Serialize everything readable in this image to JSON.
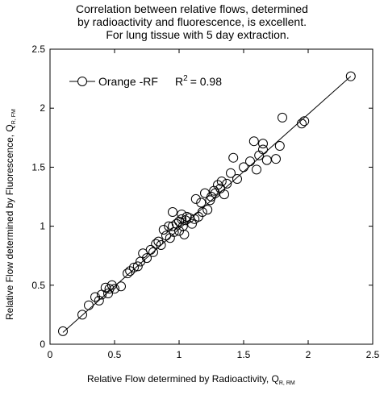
{
  "chart_data": {
    "type": "scatter",
    "title_lines": [
      "Correlation between relative flows, determined",
      "by radioactivity and fluorescence, is excellent.",
      "For lung tissue with 5 day extraction."
    ],
    "xlabel": {
      "main": "Relative Flow determined by Radioactivity, Q",
      "sub": "R, RM"
    },
    "ylabel": {
      "main": "Relative Flow determined by Fluorescence, Q",
      "sub": "R, FM"
    },
    "xlim": [
      0,
      2.5
    ],
    "ylim": [
      0,
      2.5
    ],
    "xticks": [
      "0",
      "0.5",
      "1",
      "1.5",
      "2",
      "2.5"
    ],
    "yticks": [
      "0",
      "0.5",
      "1",
      "1.5",
      "2",
      "2.5"
    ],
    "grid": false,
    "legend": {
      "position": "top-left",
      "series_name": "Orange -RF",
      "r2_label": "R",
      "r2_exp": "2",
      "r2_value": "= 0.98"
    },
    "regression_line": {
      "x": [
        0.1,
        2.33
      ],
      "y": [
        0.1,
        2.27
      ]
    },
    "points": [
      [
        0.1,
        0.11
      ],
      [
        0.25,
        0.25
      ],
      [
        0.3,
        0.33
      ],
      [
        0.35,
        0.4
      ],
      [
        0.38,
        0.37
      ],
      [
        0.4,
        0.42
      ],
      [
        0.43,
        0.48
      ],
      [
        0.45,
        0.43
      ],
      [
        0.46,
        0.47
      ],
      [
        0.48,
        0.5
      ],
      [
        0.5,
        0.47
      ],
      [
        0.55,
        0.49
      ],
      [
        0.6,
        0.6
      ],
      [
        0.62,
        0.62
      ],
      [
        0.65,
        0.65
      ],
      [
        0.68,
        0.66
      ],
      [
        0.7,
        0.7
      ],
      [
        0.72,
        0.77
      ],
      [
        0.75,
        0.73
      ],
      [
        0.78,
        0.8
      ],
      [
        0.8,
        0.78
      ],
      [
        0.82,
        0.85
      ],
      [
        0.84,
        0.87
      ],
      [
        0.86,
        0.84
      ],
      [
        0.88,
        0.97
      ],
      [
        0.9,
        0.92
      ],
      [
        0.92,
        1.0
      ],
      [
        0.93,
        0.9
      ],
      [
        0.95,
        1.0
      ],
      [
        0.95,
        1.12
      ],
      [
        0.96,
        0.95
      ],
      [
        0.98,
        1.02
      ],
      [
        1.0,
        1.04
      ],
      [
        1.0,
        0.96
      ],
      [
        1.02,
        1.1
      ],
      [
        1.02,
        1.06
      ],
      [
        1.03,
        1.0
      ],
      [
        1.04,
        0.93
      ],
      [
        1.05,
        1.05
      ],
      [
        1.06,
        1.08
      ],
      [
        1.08,
        1.07
      ],
      [
        1.1,
        1.02
      ],
      [
        1.12,
        1.06
      ],
      [
        1.13,
        1.23
      ],
      [
        1.15,
        1.08
      ],
      [
        1.17,
        1.2
      ],
      [
        1.18,
        1.12
      ],
      [
        1.2,
        1.28
      ],
      [
        1.22,
        1.14
      ],
      [
        1.24,
        1.22
      ],
      [
        1.25,
        1.25
      ],
      [
        1.27,
        1.3
      ],
      [
        1.28,
        1.28
      ],
      [
        1.3,
        1.35
      ],
      [
        1.32,
        1.32
      ],
      [
        1.33,
        1.38
      ],
      [
        1.35,
        1.27
      ],
      [
        1.37,
        1.36
      ],
      [
        1.4,
        1.45
      ],
      [
        1.42,
        1.58
      ],
      [
        1.45,
        1.4
      ],
      [
        1.5,
        1.5
      ],
      [
        1.55,
        1.55
      ],
      [
        1.58,
        1.72
      ],
      [
        1.6,
        1.48
      ],
      [
        1.62,
        1.6
      ],
      [
        1.65,
        1.65
      ],
      [
        1.65,
        1.7
      ],
      [
        1.68,
        1.56
      ],
      [
        1.75,
        1.57
      ],
      [
        1.78,
        1.68
      ],
      [
        1.8,
        1.92
      ],
      [
        1.95,
        1.87
      ],
      [
        1.97,
        1.89
      ],
      [
        2.33,
        2.27
      ]
    ]
  }
}
